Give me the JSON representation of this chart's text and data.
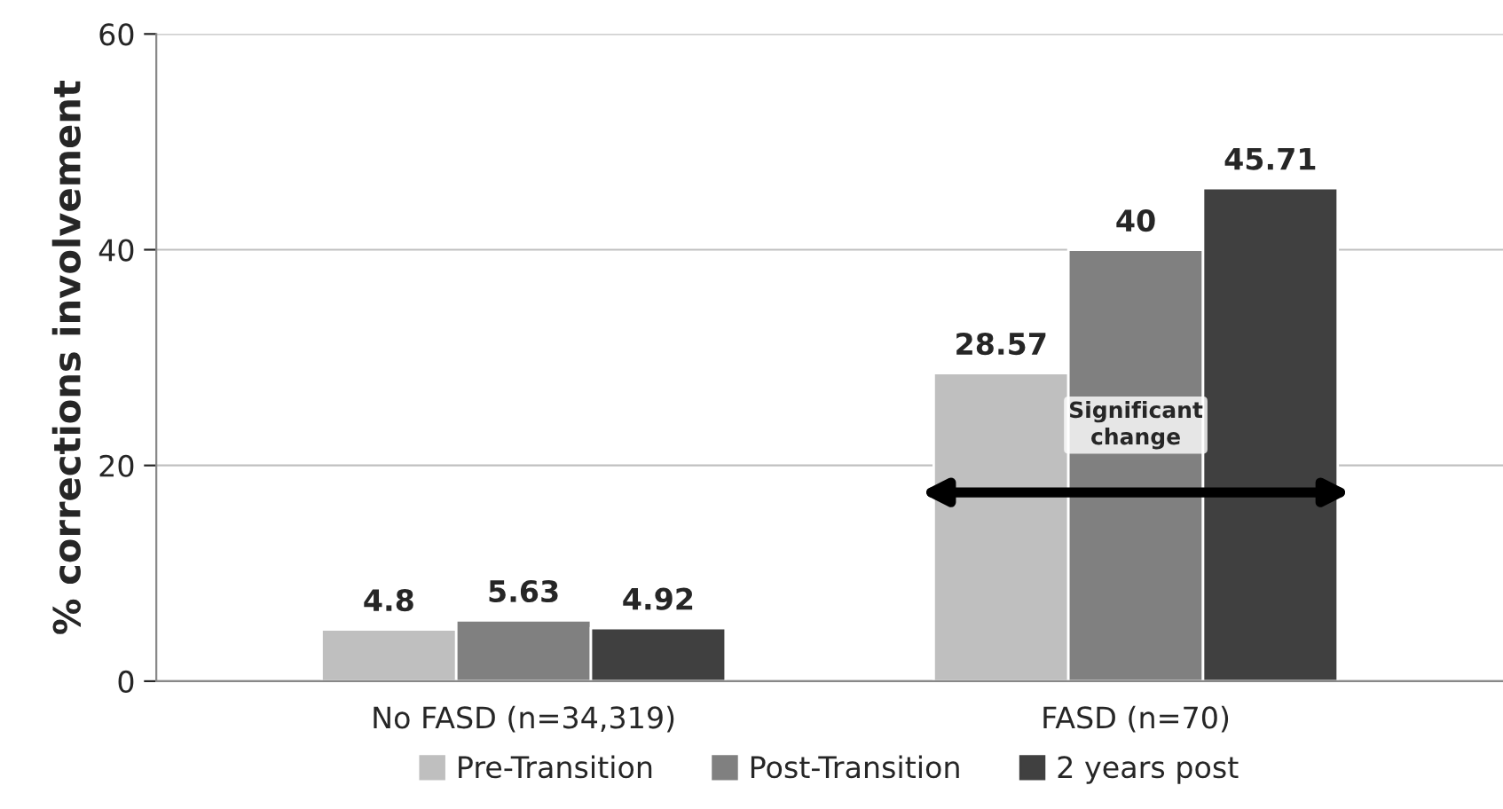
{
  "chart_data": {
    "type": "bar",
    "ylabel": "% corrections involvement",
    "categories": [
      "No FASD (n=34,319)",
      "FASD (n=70)"
    ],
    "series": [
      {
        "name": "Pre-Transition",
        "color": "#bfbfbf",
        "values": [
          4.8,
          28.57
        ]
      },
      {
        "name": "Post-Transition",
        "color": "#808080",
        "values": [
          5.63,
          40
        ]
      },
      {
        "name": "2 years post",
        "color": "#404040",
        "values": [
          4.92,
          45.71
        ]
      }
    ],
    "ylim": [
      0,
      60
    ],
    "yticks": [
      0,
      20,
      40,
      60
    ],
    "grid": "y",
    "legend": "bottom",
    "data_labels": true,
    "annotations": [
      "Significant change"
    ]
  }
}
